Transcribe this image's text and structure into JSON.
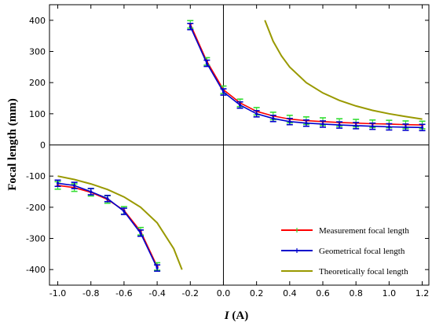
{
  "chart_data": {
    "type": "line",
    "title": "",
    "xlabel": "",
    "xlabel_italic": "I",
    "xlabel_unit": " (A)",
    "ylabel": "Focal length (mm)",
    "xlim": [
      -1.05,
      1.24
    ],
    "ylim": [
      -450,
      450
    ],
    "xticks": [
      -1.0,
      -0.8,
      -0.6,
      -0.4,
      -0.2,
      0.0,
      0.2,
      0.4,
      0.6,
      0.8,
      1.0,
      1.2
    ],
    "xtick_labels": [
      "-1.0",
      "-0.8",
      "-0.6",
      "-0.4",
      "-0.2",
      "0.0",
      "0.2",
      "0.4",
      "0.6",
      "0.8",
      "1.0",
      "1.2"
    ],
    "yticks": [
      -400,
      -300,
      -200,
      -100,
      0,
      100,
      200,
      300,
      400
    ],
    "ytick_labels": [
      "-400",
      "-300",
      "-200",
      "-100",
      "0",
      "100",
      "200",
      "300",
      "400"
    ],
    "grid": false,
    "legend_position": "bottom-right",
    "series": [
      {
        "name": "Measurement focal length",
        "color": "#ff0000",
        "errorbar_color": "#33dd33",
        "error": 12,
        "segments": [
          {
            "x": [
              -1.0,
              -0.9,
              -0.8,
              -0.7,
              -0.6,
              -0.5,
              -0.4
            ],
            "y": [
              -130,
              -137,
              -152,
              -175,
              -210,
              -277,
              -390
            ]
          },
          {
            "x": [
              -0.2,
              -0.1,
              0.0,
              0.1,
              0.2,
              0.3,
              0.4,
              0.5,
              0.6,
              0.7,
              0.8,
              0.9,
              1.0,
              1.1,
              1.2
            ],
            "y": [
              387,
              268,
              177,
              135,
              108,
              93,
              83,
              78,
              75,
              72,
              70,
              68,
              67,
              65,
              64
            ]
          }
        ]
      },
      {
        "name": "Geometrical focal length",
        "color": "#0000cc",
        "errorbar_color": "#0000cc",
        "error": 10,
        "segments": [
          {
            "x": [
              -1.0,
              -0.9,
              -0.8,
              -0.7,
              -0.6,
              -0.5,
              -0.4
            ],
            "y": [
              -123,
              -130,
              -150,
              -172,
              -213,
              -283,
              -395
            ]
          },
          {
            "x": [
              -0.2,
              -0.1,
              0.0,
              0.1,
              0.2,
              0.3,
              0.4,
              0.5,
              0.6,
              0.7,
              0.8,
              0.9,
              1.0,
              1.1,
              1.2
            ],
            "y": [
              380,
              262,
              170,
              128,
              100,
              85,
              75,
              70,
              67,
              64,
              62,
              60,
              58,
              57,
              56
            ]
          }
        ]
      },
      {
        "name": "Theoretically focal length",
        "color": "#999900",
        "segments": [
          {
            "x": [
              -1.0,
              -0.9,
              -0.8,
              -0.7,
              -0.6,
              -0.5,
              -0.4,
              -0.3,
              -0.25
            ],
            "y": [
              -100,
              -111,
              -125,
              -143,
              -167,
              -200,
              -250,
              -333,
              -400
            ]
          },
          {
            "x": [
              0.25,
              0.3,
              0.35,
              0.4,
              0.5,
              0.6,
              0.7,
              0.8,
              0.9,
              1.0,
              1.1,
              1.2
            ],
            "y": [
              400,
              333,
              286,
              250,
              200,
              167,
              143,
              125,
              111,
              100,
              91,
              83
            ]
          }
        ]
      }
    ]
  }
}
